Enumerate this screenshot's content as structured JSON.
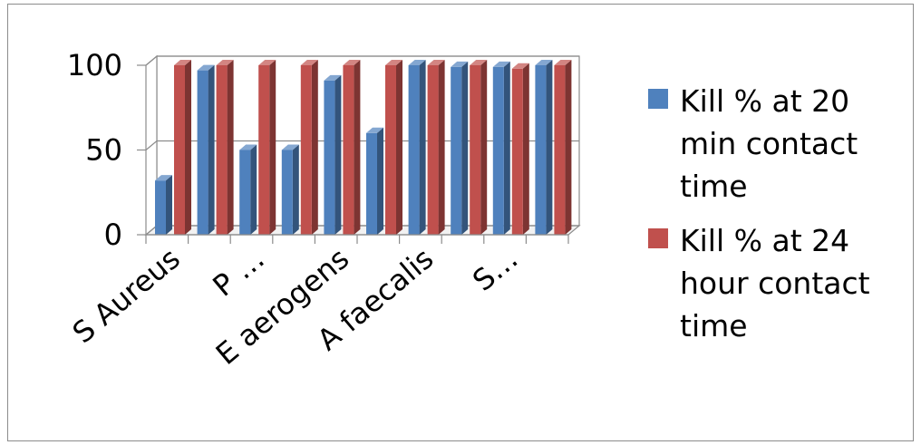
{
  "chart_data": {
    "type": "bar",
    "style": "3d-clustered-column",
    "categories": [
      "S Aureus",
      "",
      "P …",
      "",
      "E aerogens",
      "",
      "A faecalis",
      "",
      "S…",
      ""
    ],
    "series": [
      {
        "name": "Kill % at 20 min contact time",
        "color": "#4F81BD",
        "values": [
          32,
          97,
          50,
          50,
          91,
          60,
          100,
          99,
          99,
          100
        ]
      },
      {
        "name": "Kill % at 24 hour contact time",
        "color": "#C0504D",
        "values": [
          100,
          100,
          100,
          100,
          100,
          100,
          100,
          100,
          98,
          100
        ]
      }
    ],
    "y_ticks": [
      "0",
      "50",
      "100"
    ],
    "ylim": [
      0,
      100
    ],
    "grid": true,
    "legend_position": "right",
    "legend": {
      "entries": [
        {
          "lines": [
            "Kill % at 20",
            "min contact",
            "time"
          ]
        },
        {
          "lines": [
            "Kill % at 24",
            "hour contact",
            "time"
          ]
        }
      ]
    }
  }
}
